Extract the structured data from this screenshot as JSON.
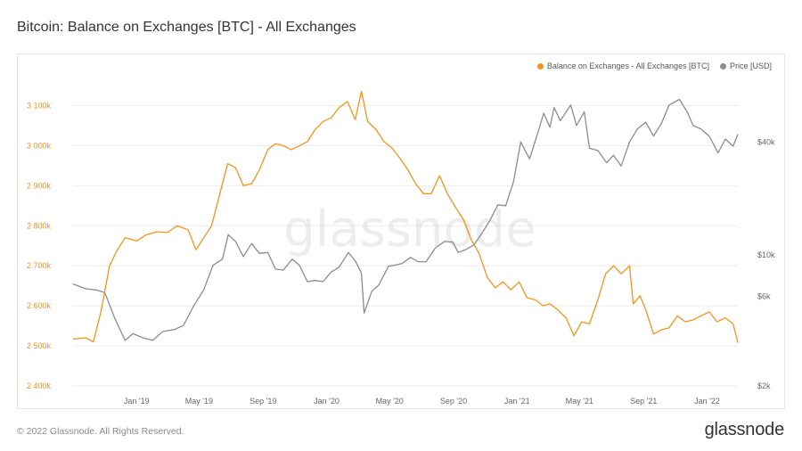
{
  "title": "Bitcoin: Balance on Exchanges [BTC] - All Exchanges",
  "footer": {
    "copyright": "© 2022 Glassnode. All Rights Reserved.",
    "logo": "glassnode"
  },
  "watermark": "glassnode",
  "colors": {
    "balance": "#f7931a",
    "price": "#8c8c8c",
    "left_axis_text": "#f7931a",
    "right_axis_text": "#666666",
    "grid": "#ececec"
  },
  "chart_data": {
    "type": "line",
    "title": "Bitcoin: Balance on Exchanges [BTC] - All Exchanges",
    "x_tick_labels": [
      "Jan '19",
      "May '19",
      "Sep '19",
      "Jan '20",
      "May '20",
      "Sep '20",
      "Jan '21",
      "May '21",
      "Sep '21",
      "Jan '22"
    ],
    "x_ticks": [
      "2019-01-01",
      "2019-05-01",
      "2019-09-01",
      "2020-01-01",
      "2020-05-01",
      "2020-09-01",
      "2021-01-01",
      "2021-05-01",
      "2021-09-01",
      "2022-01-01"
    ],
    "xlim": [
      "2018-09-01",
      "2022-03-01"
    ],
    "left_axis": {
      "ylim": [
        2400000,
        3150000
      ],
      "ticks": [
        2400000,
        2500000,
        2600000,
        2700000,
        2800000,
        2900000,
        3000000,
        3100000
      ],
      "tick_labels": [
        "2 400k",
        "2 500k",
        "2 600k",
        "2 700k",
        "2 800k",
        "2 900k",
        "3 000k",
        "3 100k"
      ]
    },
    "right_axis": {
      "scale": "log",
      "ylim": [
        2000,
        80000
      ],
      "ticks": [
        2000,
        6000,
        10000,
        40000
      ],
      "tick_labels": [
        "$2k",
        "$6k",
        "$10k",
        "$40k"
      ]
    },
    "legend_position": "top-right",
    "series": [
      {
        "name": "Balance on Exchanges - All Exchanges [BTC]",
        "axis": "left",
        "points": [
          [
            "2018-09-01",
            2517000
          ],
          [
            "2018-09-25",
            2520000
          ],
          [
            "2018-10-10",
            2510000
          ],
          [
            "2018-10-25",
            2588000
          ],
          [
            "2018-11-10",
            2700000
          ],
          [
            "2018-11-25",
            2740000
          ],
          [
            "2018-12-10",
            2770000
          ],
          [
            "2019-01-01",
            2762000
          ],
          [
            "2019-01-20",
            2778000
          ],
          [
            "2019-02-10",
            2785000
          ],
          [
            "2019-03-01",
            2783000
          ],
          [
            "2019-03-20",
            2800000
          ],
          [
            "2019-04-10",
            2790000
          ],
          [
            "2019-04-25",
            2740000
          ],
          [
            "2019-05-10",
            2770000
          ],
          [
            "2019-05-25",
            2800000
          ],
          [
            "2019-06-10",
            2880000
          ],
          [
            "2019-06-25",
            2955000
          ],
          [
            "2019-07-10",
            2945000
          ],
          [
            "2019-07-25",
            2900000
          ],
          [
            "2019-08-10",
            2905000
          ],
          [
            "2019-08-25",
            2940000
          ],
          [
            "2019-09-10",
            2990000
          ],
          [
            "2019-09-25",
            3005000
          ],
          [
            "2019-10-10",
            3000000
          ],
          [
            "2019-10-25",
            2990000
          ],
          [
            "2019-11-10",
            3000000
          ],
          [
            "2019-11-25",
            3010000
          ],
          [
            "2019-12-10",
            3040000
          ],
          [
            "2019-12-25",
            3060000
          ],
          [
            "2020-01-10",
            3070000
          ],
          [
            "2020-01-25",
            3095000
          ],
          [
            "2020-02-10",
            3110000
          ],
          [
            "2020-02-25",
            3065000
          ],
          [
            "2020-03-08",
            3135000
          ],
          [
            "2020-03-20",
            3060000
          ],
          [
            "2020-04-05",
            3040000
          ],
          [
            "2020-04-20",
            3010000
          ],
          [
            "2020-05-05",
            2995000
          ],
          [
            "2020-05-20",
            2970000
          ],
          [
            "2020-06-05",
            2940000
          ],
          [
            "2020-06-20",
            2905000
          ],
          [
            "2020-07-05",
            2880000
          ],
          [
            "2020-07-20",
            2880000
          ],
          [
            "2020-08-05",
            2925000
          ],
          [
            "2020-08-20",
            2880000
          ],
          [
            "2020-09-05",
            2845000
          ],
          [
            "2020-09-20",
            2815000
          ],
          [
            "2020-10-05",
            2765000
          ],
          [
            "2020-10-20",
            2730000
          ],
          [
            "2020-11-05",
            2670000
          ],
          [
            "2020-11-20",
            2645000
          ],
          [
            "2020-12-05",
            2660000
          ],
          [
            "2020-12-20",
            2640000
          ],
          [
            "2021-01-05",
            2660000
          ],
          [
            "2021-01-20",
            2620000
          ],
          [
            "2021-02-05",
            2615000
          ],
          [
            "2021-02-20",
            2600000
          ],
          [
            "2021-03-05",
            2605000
          ],
          [
            "2021-03-20",
            2590000
          ],
          [
            "2021-04-05",
            2570000
          ],
          [
            "2021-04-20",
            2525000
          ],
          [
            "2021-05-05",
            2560000
          ],
          [
            "2021-05-20",
            2555000
          ],
          [
            "2021-06-05",
            2615000
          ],
          [
            "2021-06-20",
            2680000
          ],
          [
            "2021-07-05",
            2700000
          ],
          [
            "2021-07-20",
            2680000
          ],
          [
            "2021-08-05",
            2700000
          ],
          [
            "2021-08-12",
            2605000
          ],
          [
            "2021-08-25",
            2625000
          ],
          [
            "2021-09-05",
            2590000
          ],
          [
            "2021-09-20",
            2530000
          ],
          [
            "2021-10-05",
            2540000
          ],
          [
            "2021-10-20",
            2545000
          ],
          [
            "2021-11-05",
            2575000
          ],
          [
            "2021-11-20",
            2560000
          ],
          [
            "2021-12-05",
            2565000
          ],
          [
            "2021-12-20",
            2575000
          ],
          [
            "2022-01-05",
            2585000
          ],
          [
            "2022-01-20",
            2560000
          ],
          [
            "2022-02-05",
            2570000
          ],
          [
            "2022-02-20",
            2555000
          ],
          [
            "2022-03-01",
            2508000
          ]
        ]
      },
      {
        "name": "Price [USD]",
        "axis": "right",
        "points": [
          [
            "2018-09-01",
            7000
          ],
          [
            "2018-09-25",
            6600
          ],
          [
            "2018-10-15",
            6500
          ],
          [
            "2018-11-01",
            6300
          ],
          [
            "2018-11-20",
            4600
          ],
          [
            "2018-12-10",
            3500
          ],
          [
            "2018-12-25",
            3800
          ],
          [
            "2019-01-15",
            3600
          ],
          [
            "2019-02-01",
            3500
          ],
          [
            "2019-02-20",
            3900
          ],
          [
            "2019-03-15",
            4000
          ],
          [
            "2019-04-01",
            4200
          ],
          [
            "2019-04-20",
            5300
          ],
          [
            "2019-05-10",
            6500
          ],
          [
            "2019-05-28",
            8800
          ],
          [
            "2019-06-15",
            9500
          ],
          [
            "2019-06-26",
            12800
          ],
          [
            "2019-07-10",
            11800
          ],
          [
            "2019-07-25",
            9800
          ],
          [
            "2019-08-10",
            11500
          ],
          [
            "2019-08-25",
            10200
          ],
          [
            "2019-09-10",
            10300
          ],
          [
            "2019-09-25",
            8400
          ],
          [
            "2019-10-10",
            8300
          ],
          [
            "2019-10-27",
            9500
          ],
          [
            "2019-11-10",
            8800
          ],
          [
            "2019-11-25",
            7200
          ],
          [
            "2019-12-10",
            7300
          ],
          [
            "2019-12-25",
            7200
          ],
          [
            "2020-01-10",
            8100
          ],
          [
            "2020-01-25",
            8600
          ],
          [
            "2020-02-12",
            10300
          ],
          [
            "2020-02-25",
            9300
          ],
          [
            "2020-03-08",
            8000
          ],
          [
            "2020-03-13",
            4900
          ],
          [
            "2020-03-28",
            6400
          ],
          [
            "2020-04-10",
            6900
          ],
          [
            "2020-04-29",
            8700
          ],
          [
            "2020-05-10",
            8800
          ],
          [
            "2020-05-25",
            9000
          ],
          [
            "2020-06-10",
            9700
          ],
          [
            "2020-06-25",
            9200
          ],
          [
            "2020-07-10",
            9200
          ],
          [
            "2020-07-28",
            10900
          ],
          [
            "2020-08-15",
            11800
          ],
          [
            "2020-08-30",
            11700
          ],
          [
            "2020-09-10",
            10300
          ],
          [
            "2020-09-25",
            10700
          ],
          [
            "2020-10-10",
            11300
          ],
          [
            "2020-10-25",
            13000
          ],
          [
            "2020-11-10",
            15300
          ],
          [
            "2020-11-25",
            18500
          ],
          [
            "2020-12-10",
            18300
          ],
          [
            "2020-12-25",
            24500
          ],
          [
            "2021-01-08",
            40000
          ],
          [
            "2021-01-25",
            32500
          ],
          [
            "2021-02-10",
            45000
          ],
          [
            "2021-02-21",
            57000
          ],
          [
            "2021-03-05",
            48000
          ],
          [
            "2021-03-13",
            61000
          ],
          [
            "2021-03-25",
            52000
          ],
          [
            "2021-04-14",
            63000
          ],
          [
            "2021-04-25",
            49000
          ],
          [
            "2021-05-10",
            58000
          ],
          [
            "2021-05-20",
            37000
          ],
          [
            "2021-06-05",
            36000
          ],
          [
            "2021-06-22",
            31000
          ],
          [
            "2021-07-05",
            34000
          ],
          [
            "2021-07-20",
            29800
          ],
          [
            "2021-08-05",
            40000
          ],
          [
            "2021-08-20",
            47000
          ],
          [
            "2021-09-05",
            51000
          ],
          [
            "2021-09-20",
            43000
          ],
          [
            "2021-10-05",
            50000
          ],
          [
            "2021-10-20",
            63000
          ],
          [
            "2021-11-09",
            67500
          ],
          [
            "2021-11-25",
            57000
          ],
          [
            "2021-12-05",
            49000
          ],
          [
            "2021-12-20",
            47000
          ],
          [
            "2022-01-05",
            43000
          ],
          [
            "2022-01-22",
            35000
          ],
          [
            "2022-02-05",
            41500
          ],
          [
            "2022-02-20",
            38000
          ],
          [
            "2022-03-01",
            44000
          ]
        ]
      }
    ]
  }
}
